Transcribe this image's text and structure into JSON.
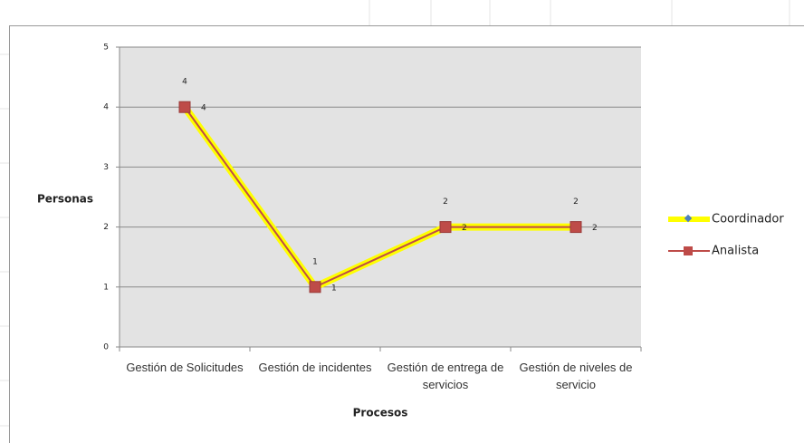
{
  "chart_data": {
    "type": "line",
    "categories": [
      "Gestión de Solicitudes",
      "Gestión de incidentes",
      "Gestión de entrega de servicios",
      "Gestión de niveles de servicio"
    ],
    "series": [
      {
        "name": "Coordinador",
        "color": "#ffff00",
        "values": [
          4,
          1,
          2,
          2
        ]
      },
      {
        "name": "Analista",
        "color": "#be4b48",
        "values": [
          4,
          1,
          2,
          2
        ]
      }
    ],
    "ylim": [
      0,
      5
    ],
    "yticks": [
      0,
      1,
      2,
      3,
      4,
      5
    ],
    "ylabel": "Personas",
    "xlabel": "Procesos",
    "grid": true,
    "legend": "right"
  }
}
